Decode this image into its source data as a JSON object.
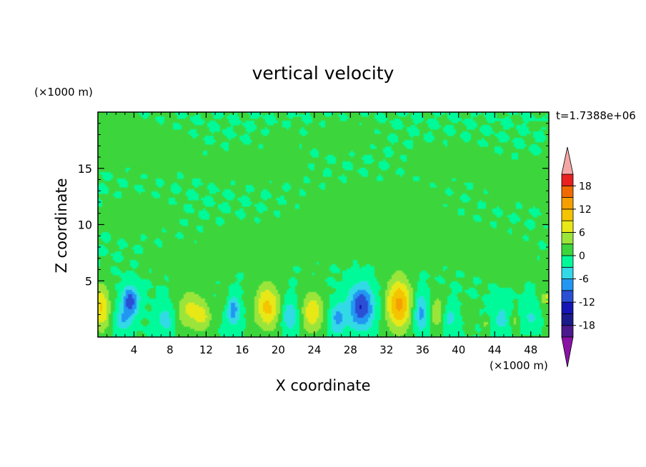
{
  "chart_data": {
    "type": "heatmap",
    "title": "vertical velocity",
    "xlabel": "X coordinate",
    "ylabel": "Z coordinate",
    "x_unit_label": "(×1000 m)",
    "y_unit_label": "(×1000 m)",
    "time_label": "t=1.7388e+06",
    "xlim": [
      0,
      50
    ],
    "ylim": [
      0,
      20
    ],
    "x_ticks": [
      4,
      8,
      12,
      16,
      20,
      24,
      28,
      32,
      36,
      40,
      44,
      48
    ],
    "y_ticks": [
      5,
      10,
      15
    ],
    "colorbar": {
      "levels": [
        -21,
        -18,
        -15,
        -12,
        -9,
        -6,
        -3,
        0,
        3,
        6,
        9,
        12,
        15,
        18,
        21
      ],
      "labels": [
        -18,
        -12,
        -6,
        0,
        6,
        12,
        18
      ],
      "colors": [
        "#4b1a8c",
        "#1b1b8c",
        "#1515b5",
        "#2a4fd5",
        "#2196f3",
        "#33d9e6",
        "#00fa9a",
        "#3cd63c",
        "#9be53a",
        "#e8e817",
        "#f5c400",
        "#f5a000",
        "#f06a00",
        "#e82020"
      ],
      "under_color": "#8a13a5",
      "over_color": "#f4a6a6"
    },
    "features": [
      {
        "kind": "upper_weak_positive",
        "x": 1.5,
        "z": 17.8,
        "rx": 3.0,
        "rz": 1.8,
        "w": 1.2
      },
      {
        "kind": "upper_weak_positive",
        "x": 6.5,
        "z": 16.5,
        "rx": 3.5,
        "rz": 1.8,
        "w": 1.1
      },
      {
        "kind": "upper_weak_positive",
        "x": 20.5,
        "z": 17.5,
        "rx": 1.6,
        "rz": 0.9,
        "w": 1.2
      },
      {
        "kind": "upper_weak_positive",
        "x": 27.5,
        "z": 17.8,
        "rx": 3.0,
        "rz": 1.2,
        "w": 1.1
      },
      {
        "kind": "upper_weak_positive",
        "x": 39.0,
        "z": 15.6,
        "rx": 4.0,
        "rz": 1.3,
        "w": 1.1
      },
      {
        "kind": "upper_weak_positive",
        "x": 47.0,
        "z": 13.8,
        "rx": 3.5,
        "rz": 1.6,
        "w": 1.2
      },
      {
        "kind": "mid_weak_positive",
        "x": 17.0,
        "z": 15.2,
        "rx": 5.0,
        "rz": 1.3,
        "w": 1.0
      },
      {
        "kind": "mid_weak_positive",
        "x": 30.5,
        "z": 11.5,
        "rx": 7.0,
        "rz": 2.0,
        "w": 1.1
      },
      {
        "kind": "mid_weak_positive",
        "x": 20.0,
        "z": 8.3,
        "rx": 8.0,
        "rz": 1.7,
        "w": 1.0
      },
      {
        "kind": "mid_weak_positive",
        "x": 38.5,
        "z": 8.3,
        "rx": 7.5,
        "rz": 1.6,
        "w": 1.0
      },
      {
        "kind": "mid_weak_positive",
        "x": 4.5,
        "z": 10.8,
        "rx": 3.5,
        "rz": 1.5,
        "w": 1.0
      },
      {
        "kind": "mid_weak_positive",
        "x": 10.0,
        "z": 6.5,
        "rx": 4.5,
        "rz": 1.2,
        "w": 0.9
      },
      {
        "kind": "mid_weak_positive",
        "x": 33.5,
        "z": 7.0,
        "rx": 4.0,
        "rz": 1.0,
        "w": 0.9
      },
      {
        "kind": "mid_weak_positive",
        "x": 45.5,
        "z": 6.2,
        "rx": 3.5,
        "rz": 1.2,
        "w": 0.9
      },
      {
        "kind": "updraft",
        "x": 0.4,
        "z": 2.6,
        "rx": 0.9,
        "rz": 2.0,
        "w": 9.5
      },
      {
        "kind": "updraft",
        "x": 10.3,
        "z": 2.4,
        "rx": 1.5,
        "rz": 1.7,
        "w": 7.0
      },
      {
        "kind": "updraft",
        "x": 11.8,
        "z": 1.7,
        "rx": 0.9,
        "rz": 1.2,
        "w": 4.5
      },
      {
        "kind": "updraft",
        "x": 18.8,
        "z": 2.7,
        "rx": 1.4,
        "rz": 2.0,
        "w": 10.0
      },
      {
        "kind": "updraft",
        "x": 23.8,
        "z": 2.2,
        "rx": 1.2,
        "rz": 1.8,
        "w": 8.5
      },
      {
        "kind": "updraft",
        "x": 33.4,
        "z": 2.9,
        "rx": 1.4,
        "rz": 2.3,
        "w": 13.0
      },
      {
        "kind": "updraft",
        "x": 37.6,
        "z": 2.2,
        "rx": 0.8,
        "rz": 1.5,
        "w": 5.5
      },
      {
        "kind": "updraft",
        "x": 41.2,
        "z": 2.0,
        "rx": 0.6,
        "rz": 0.9,
        "w": 2.5
      },
      {
        "kind": "updraft",
        "x": 43.0,
        "z": 1.2,
        "rx": 0.4,
        "rz": 0.7,
        "w": 3.5
      },
      {
        "kind": "updraft",
        "x": 46.2,
        "z": 1.4,
        "rx": 0.5,
        "rz": 0.8,
        "w": 4.0
      },
      {
        "kind": "updraft",
        "x": 49.8,
        "z": 3.5,
        "rx": 0.6,
        "rz": 1.2,
        "w": 7.0
      },
      {
        "kind": "updraft",
        "x": 14.0,
        "z": 3.5,
        "rx": 0.6,
        "rz": 1.2,
        "w": 2.0
      },
      {
        "kind": "downdraft",
        "x": 3.6,
        "z": 3.2,
        "rx": 0.9,
        "rz": 1.3,
        "w": -11.0
      },
      {
        "kind": "downdraft",
        "x": 2.8,
        "z": 1.5,
        "rx": 0.9,
        "rz": 1.0,
        "w": -5.5
      },
      {
        "kind": "downdraft",
        "x": 7.5,
        "z": 1.6,
        "rx": 1.0,
        "rz": 1.4,
        "w": -4.5
      },
      {
        "kind": "downdraft",
        "x": 15.0,
        "z": 2.3,
        "rx": 0.7,
        "rz": 1.3,
        "w": -8.0
      },
      {
        "kind": "downdraft",
        "x": 21.3,
        "z": 1.9,
        "rx": 0.9,
        "rz": 1.4,
        "w": -6.0
      },
      {
        "kind": "downdraft",
        "x": 26.6,
        "z": 1.6,
        "rx": 0.9,
        "rz": 1.3,
        "w": -7.0
      },
      {
        "kind": "downdraft",
        "x": 29.2,
        "z": 2.7,
        "rx": 1.4,
        "rz": 1.9,
        "w": -12.0
      },
      {
        "kind": "downdraft",
        "x": 35.8,
        "z": 2.2,
        "rx": 0.8,
        "rz": 1.7,
        "w": -7.5
      },
      {
        "kind": "downdraft",
        "x": 39.0,
        "z": 1.6,
        "rx": 0.8,
        "rz": 1.2,
        "w": -4.0
      },
      {
        "kind": "downdraft",
        "x": 44.8,
        "z": 1.6,
        "rx": 1.0,
        "rz": 1.4,
        "w": -4.0
      },
      {
        "kind": "downdraft",
        "x": 48.0,
        "z": 1.8,
        "rx": 0.9,
        "rz": 1.4,
        "w": -3.5
      }
    ]
  }
}
